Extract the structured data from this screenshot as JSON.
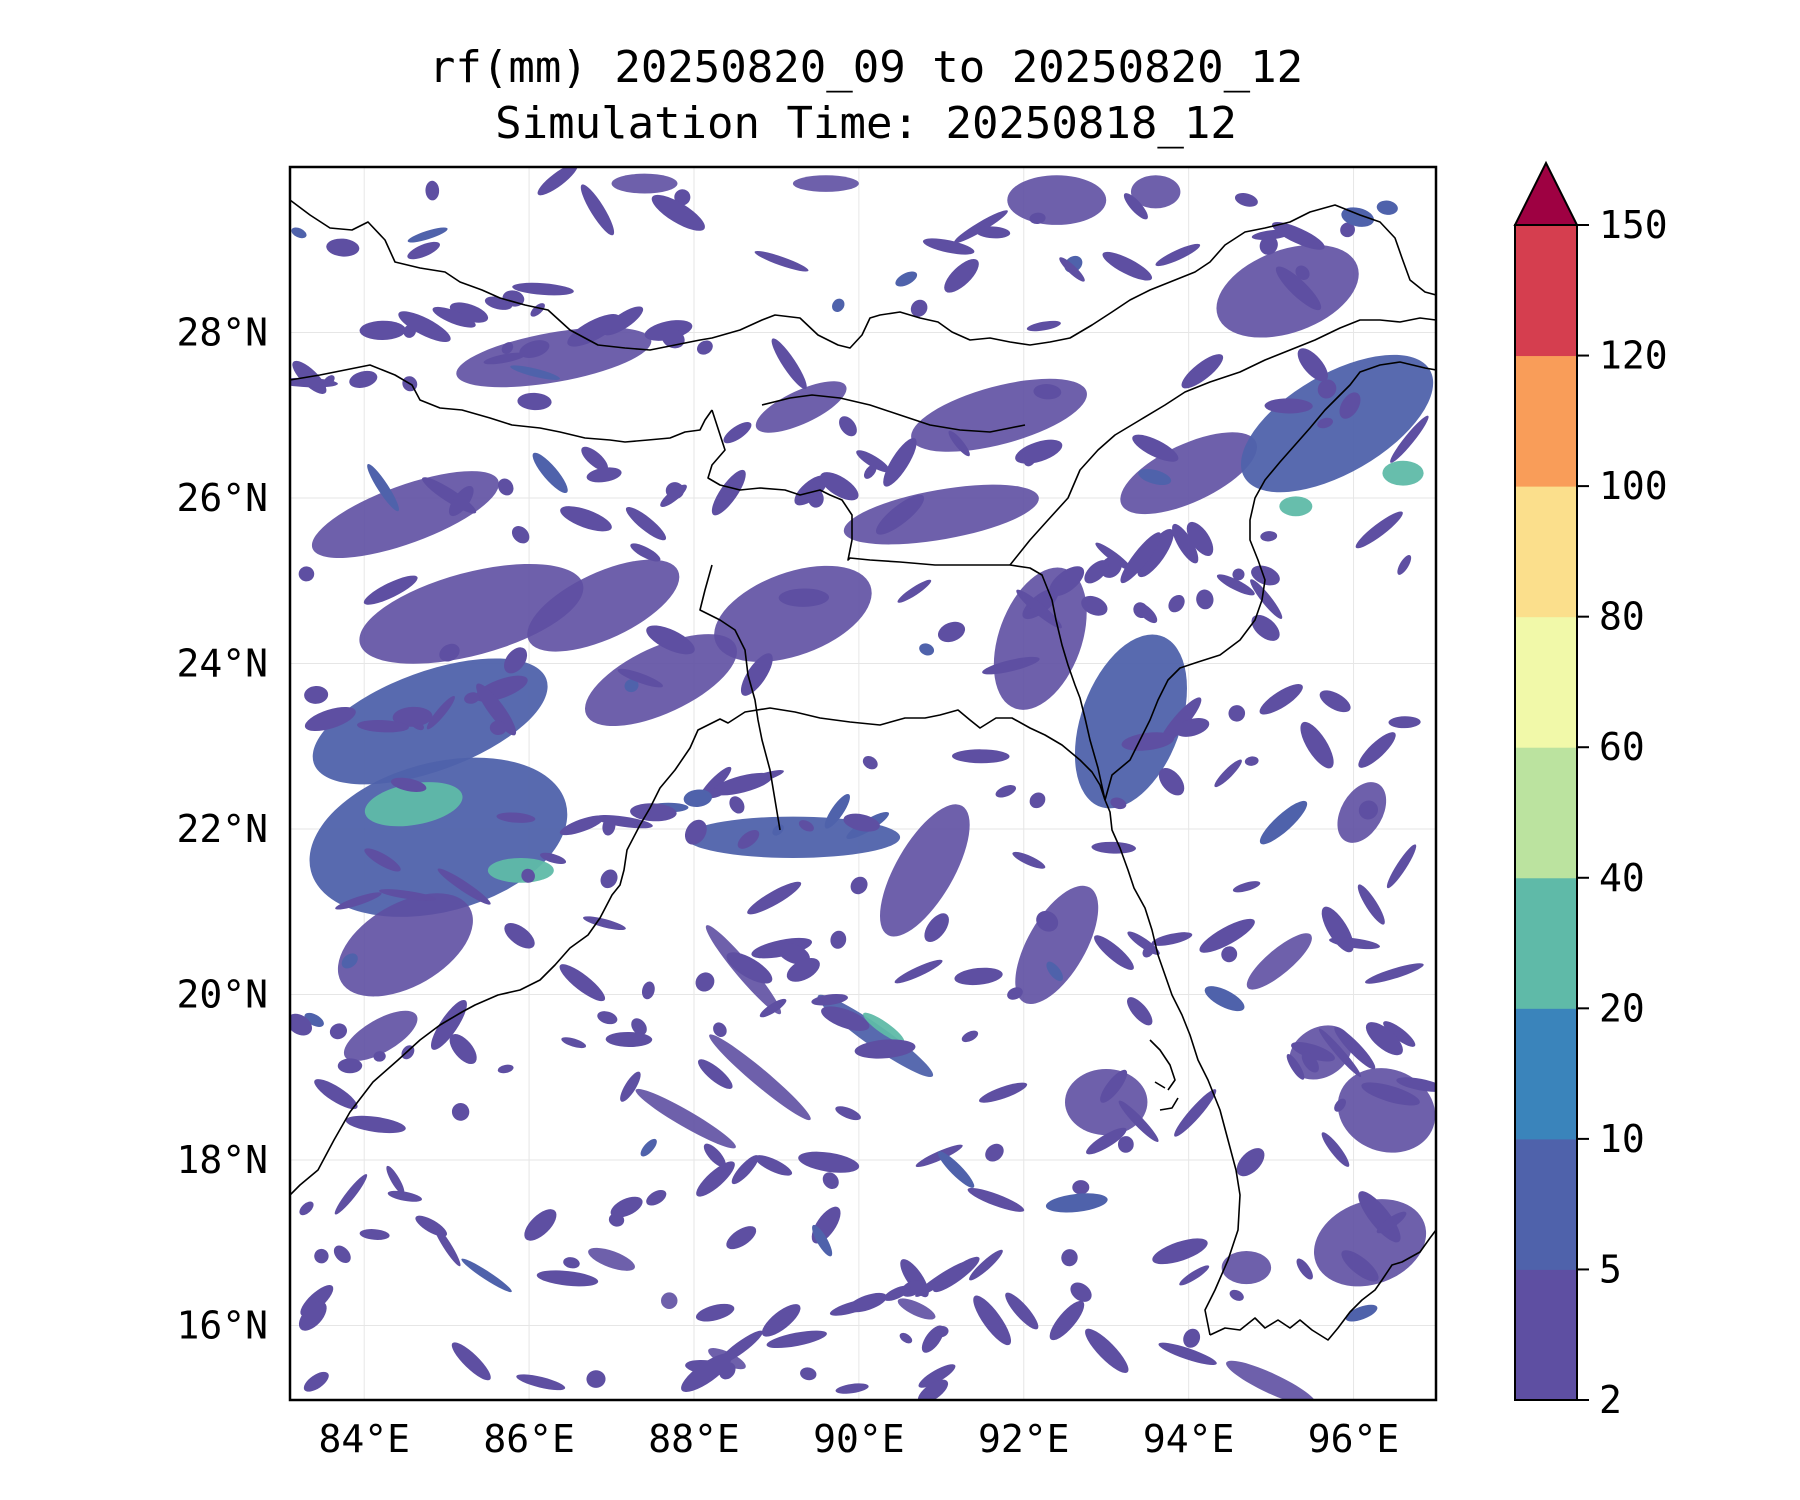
{
  "title": {
    "line1": "rf(mm) 20250820_09 to 20250820_12",
    "line2": "Simulation Time: 20250818_12"
  },
  "map": {
    "extent": {
      "lon_min": 83.1,
      "lon_max": 97.0,
      "lat_min": 15.1,
      "lat_max": 30.0
    },
    "lon_ticks": [
      {
        "value": 84,
        "label": "84°E"
      },
      {
        "value": 86,
        "label": "86°E"
      },
      {
        "value": 88,
        "label": "88°E"
      },
      {
        "value": 90,
        "label": "90°E"
      },
      {
        "value": 92,
        "label": "92°E"
      },
      {
        "value": 94,
        "label": "94°E"
      },
      {
        "value": 96,
        "label": "96°E"
      }
    ],
    "lat_ticks": [
      {
        "value": 16,
        "label": "16°N"
      },
      {
        "value": 18,
        "label": "18°N"
      },
      {
        "value": 20,
        "label": "20°N"
      },
      {
        "value": 22,
        "label": "22°N"
      },
      {
        "value": 24,
        "label": "24°N"
      },
      {
        "value": 26,
        "label": "26°N"
      },
      {
        "value": 28,
        "label": "28°N"
      }
    ],
    "gridlines": true
  },
  "colorbar": {
    "levels": [
      {
        "value": 2,
        "label": "2"
      },
      {
        "value": 5,
        "label": "5"
      },
      {
        "value": 10,
        "label": "10"
      },
      {
        "value": 20,
        "label": "20"
      },
      {
        "value": 40,
        "label": "40"
      },
      {
        "value": 60,
        "label": "60"
      },
      {
        "value": 80,
        "label": "80"
      },
      {
        "value": 100,
        "label": "100"
      },
      {
        "value": 120,
        "label": "120"
      },
      {
        "value": 150,
        "label": "150"
      }
    ],
    "colors": [
      "#5e4fa2",
      "#4f62ab",
      "#3a84bb",
      "#5fbaa8",
      "#bbe39f",
      "#f1f9a9",
      "#fbdf8c",
      "#f99d59",
      "#d53e4f"
    ],
    "extend_color": "#9e0142"
  },
  "rain_regions": [
    {
      "band": 0,
      "lon": 84.5,
      "lat": 25.8,
      "rlon": 1.2,
      "rlat": 0.35,
      "rot": 20
    },
    {
      "band": 0,
      "lon": 85.3,
      "lat": 24.6,
      "rlon": 1.4,
      "rlat": 0.5,
      "rot": 15
    },
    {
      "band": 1,
      "lon": 84.8,
      "lat": 23.3,
      "rlon": 1.5,
      "rlat": 0.6,
      "rot": 20
    },
    {
      "band": 1,
      "lon": 84.9,
      "lat": 21.9,
      "rlon": 1.6,
      "rlat": 0.9,
      "rot": 15
    },
    {
      "band": 3,
      "lon": 84.6,
      "lat": 22.3,
      "rlon": 0.6,
      "rlat": 0.25,
      "rot": 10
    },
    {
      "band": 3,
      "lon": 85.9,
      "lat": 21.5,
      "rlon": 0.4,
      "rlat": 0.15,
      "rot": 0
    },
    {
      "band": 0,
      "lon": 84.5,
      "lat": 20.6,
      "rlon": 0.9,
      "rlat": 0.5,
      "rot": 30
    },
    {
      "band": 0,
      "lon": 86.9,
      "lat": 24.7,
      "rlon": 1.0,
      "rlat": 0.4,
      "rot": 25
    },
    {
      "band": 0,
      "lon": 87.6,
      "lat": 23.8,
      "rlon": 1.0,
      "rlat": 0.4,
      "rot": 25
    },
    {
      "band": 0,
      "lon": 89.2,
      "lat": 24.6,
      "rlon": 1.0,
      "rlat": 0.5,
      "rot": 20
    },
    {
      "band": 0,
      "lon": 86.3,
      "lat": 27.7,
      "rlon": 1.2,
      "rlat": 0.3,
      "rot": 10
    },
    {
      "band": 0,
      "lon": 89.3,
      "lat": 27.1,
      "rlon": 0.6,
      "rlat": 0.2,
      "rot": 25
    },
    {
      "band": 0,
      "lon": 91.7,
      "lat": 27.0,
      "rlon": 1.1,
      "rlat": 0.35,
      "rot": 15
    },
    {
      "band": 0,
      "lon": 91.0,
      "lat": 25.8,
      "rlon": 1.2,
      "rlat": 0.3,
      "rot": 10
    },
    {
      "band": 0,
      "lon": 92.2,
      "lat": 24.3,
      "rlon": 0.9,
      "rlat": 0.5,
      "rot": 70
    },
    {
      "band": 1,
      "lon": 93.3,
      "lat": 23.3,
      "rlon": 1.1,
      "rlat": 0.6,
      "rot": 70
    },
    {
      "band": 0,
      "lon": 94.0,
      "lat": 26.3,
      "rlon": 0.9,
      "rlat": 0.35,
      "rot": 25
    },
    {
      "band": 1,
      "lon": 95.8,
      "lat": 26.9,
      "rlon": 1.3,
      "rlat": 0.6,
      "rot": 30
    },
    {
      "band": 3,
      "lon": 96.6,
      "lat": 26.3,
      "rlon": 0.25,
      "rlat": 0.15,
      "rot": 0
    },
    {
      "band": 3,
      "lon": 95.3,
      "lat": 25.9,
      "rlon": 0.2,
      "rlat": 0.12,
      "rot": 0
    },
    {
      "band": 0,
      "lon": 95.2,
      "lat": 28.5,
      "rlon": 0.9,
      "rlat": 0.5,
      "rot": 20
    },
    {
      "band": 1,
      "lon": 89.2,
      "lat": 21.9,
      "rlon": 1.3,
      "rlat": 0.25,
      "rot": 0
    },
    {
      "band": 0,
      "lon": 90.8,
      "lat": 21.5,
      "rlon": 0.35,
      "rlat": 0.9,
      "rot": -30
    },
    {
      "band": 0,
      "lon": 92.4,
      "lat": 20.6,
      "rlon": 0.35,
      "rlat": 0.8,
      "rot": -30
    },
    {
      "band": 1,
      "lon": 90.2,
      "lat": 19.5,
      "rlon": 0.85,
      "rlat": 0.13,
      "rot": -35
    },
    {
      "band": 3,
      "lon": 90.3,
      "lat": 19.6,
      "rlon": 0.3,
      "rlat": 0.07,
      "rot": -35
    },
    {
      "band": 0,
      "lon": 88.8,
      "lat": 19.0,
      "rlon": 0.8,
      "rlat": 0.1,
      "rot": -40
    },
    {
      "band": 0,
      "lon": 87.9,
      "lat": 18.5,
      "rlon": 0.7,
      "rlat": 0.1,
      "rot": -30
    },
    {
      "band": 0,
      "lon": 88.6,
      "lat": 20.3,
      "rlon": 0.7,
      "rlat": 0.1,
      "rot": -50
    },
    {
      "band": 0,
      "lon": 93.0,
      "lat": 18.7,
      "rlon": 0.5,
      "rlat": 0.4,
      "rot": 0
    },
    {
      "band": 0,
      "lon": 95.1,
      "lat": 20.4,
      "rlon": 0.5,
      "rlat": 0.15,
      "rot": 40
    },
    {
      "band": 0,
      "lon": 95.6,
      "lat": 19.3,
      "rlon": 0.4,
      "rlat": 0.3,
      "rot": 30
    },
    {
      "band": 0,
      "lon": 96.1,
      "lat": 22.2,
      "rlon": 0.4,
      "rlat": 0.25,
      "rot": 60
    },
    {
      "band": 0,
      "lon": 96.4,
      "lat": 18.6,
      "rlon": 0.5,
      "rlat": 0.6,
      "rot": 70
    },
    {
      "band": 0,
      "lon": 96.2,
      "lat": 17.0,
      "rlon": 0.7,
      "rlat": 0.5,
      "rot": 20
    },
    {
      "band": 0,
      "lon": 94.7,
      "lat": 16.7,
      "rlon": 0.3,
      "rlat": 0.2,
      "rot": 0
    },
    {
      "band": 0,
      "lon": 95.0,
      "lat": 15.3,
      "rlon": 0.6,
      "rlat": 0.12,
      "rot": -25
    },
    {
      "band": 0,
      "lon": 88.4,
      "lat": 15.6,
      "rlon": 0.25,
      "rlat": 0.08,
      "rot": -25
    },
    {
      "band": 0,
      "lon": 90.7,
      "lat": 16.2,
      "rlon": 0.25,
      "rlat": 0.08,
      "rot": -25
    },
    {
      "band": 0,
      "lon": 84.2,
      "lat": 19.5,
      "rlon": 0.2,
      "rlat": 0.5,
      "rot": -60
    },
    {
      "band": 0,
      "lon": 87.0,
      "lat": 16.8,
      "rlon": 0.3,
      "rlat": 0.1,
      "rot": -20
    },
    {
      "band": 0,
      "lon": 87.7,
      "lat": 16.3,
      "rlon": 0.1,
      "rlat": 0.1,
      "rot": 0
    },
    {
      "band": 0,
      "lon": 87.4,
      "lat": 29.8,
      "rlon": 0.4,
      "rlat": 0.12,
      "rot": 0
    },
    {
      "band": 0,
      "lon": 89.6,
      "lat": 29.8,
      "rlon": 0.4,
      "rlat": 0.1,
      "rot": 0
    },
    {
      "band": 0,
      "lon": 92.4,
      "lat": 29.6,
      "rlon": 0.6,
      "rlat": 0.3,
      "rot": 0
    },
    {
      "band": 0,
      "lon": 93.6,
      "lat": 29.7,
      "rlon": 0.3,
      "rlat": 0.2,
      "rot": 0
    }
  ],
  "rain_specks": {
    "count": 340,
    "seed": 17,
    "lon_range": [
      83.2,
      96.9
    ],
    "lat_range": [
      15.2,
      29.9
    ]
  }
}
